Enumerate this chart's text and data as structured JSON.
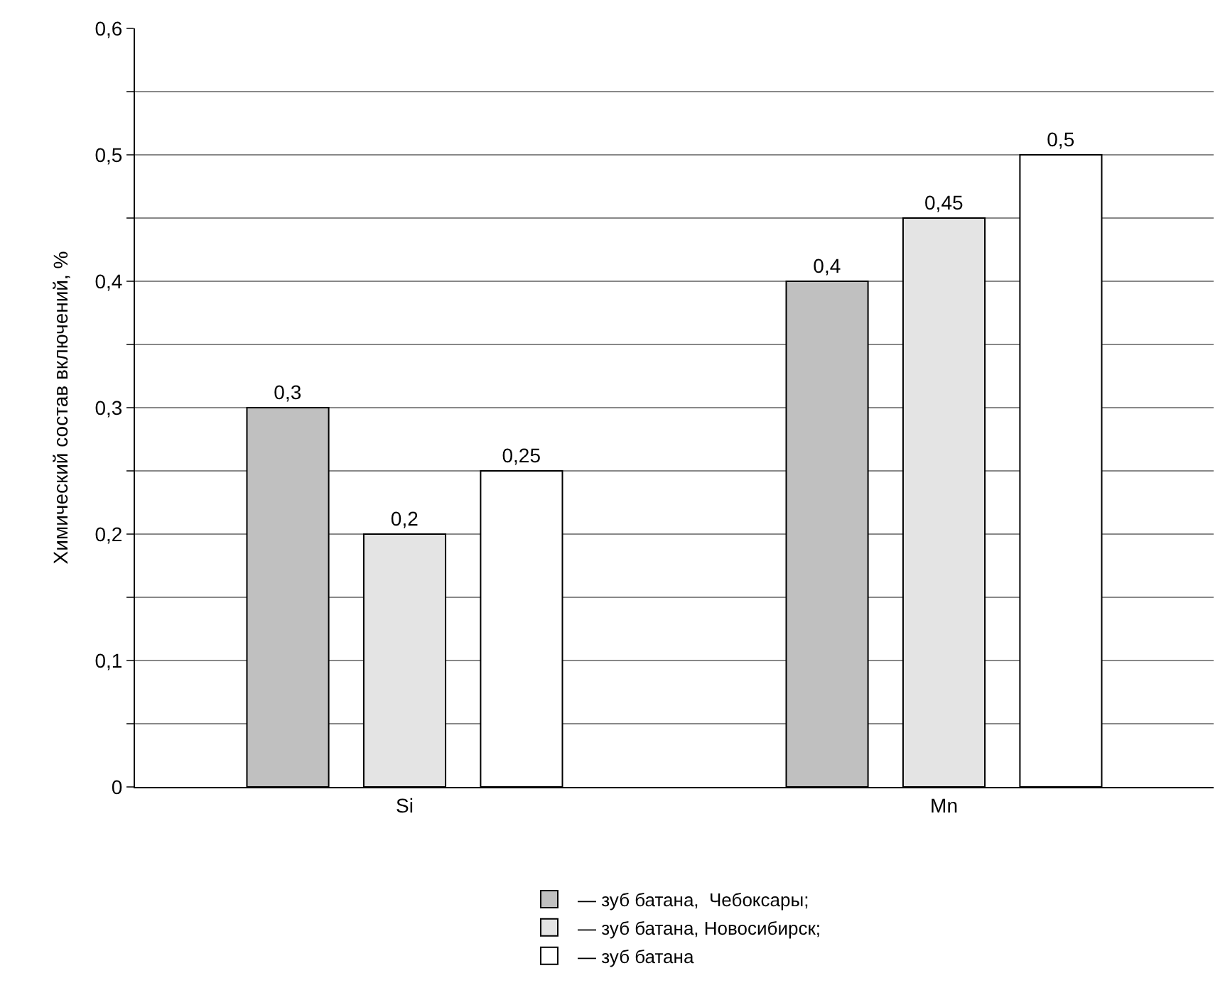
{
  "chart_data": {
    "type": "bar",
    "ylabel": "Химический состав включений, %",
    "categories": [
      "Si",
      "Mn"
    ],
    "series": [
      {
        "name": "— зуб батана,  Чебоксары;",
        "color": "#c0c0c0",
        "values": [
          0.3,
          0.4
        ],
        "value_labels": [
          "0,3",
          "0,4"
        ]
      },
      {
        "name": "— зуб батана, Новосибирск;",
        "color": "#e4e4e4",
        "values": [
          0.2,
          0.45
        ],
        "value_labels": [
          "0,2",
          "0,45"
        ]
      },
      {
        "name": "— зуб батана",
        "color": "#ffffff",
        "values": [
          0.25,
          0.5
        ],
        "value_labels": [
          "0,25",
          "0,5"
        ]
      }
    ],
    "ylim": [
      0,
      0.6
    ],
    "yticks": [
      0,
      {
        "value": 0.05,
        "label": null
      },
      {
        "value": 0.1,
        "label": "0,1"
      },
      {
        "value": 0.15,
        "label": null
      },
      {
        "value": 0.2,
        "label": "0,2"
      },
      {
        "value": 0.25,
        "label": null
      },
      {
        "value": 0.3,
        "label": "0,3"
      },
      {
        "value": 0.35,
        "label": null
      },
      {
        "value": 0.4,
        "label": "0,4"
      },
      {
        "value": 0.45,
        "label": null
      },
      {
        "value": 0.5,
        "label": "0,5"
      },
      {
        "value": 0.55,
        "label": null
      },
      {
        "value": 0.6,
        "label": "0,6"
      }
    ],
    "grid": "y",
    "legend": "bottom"
  }
}
